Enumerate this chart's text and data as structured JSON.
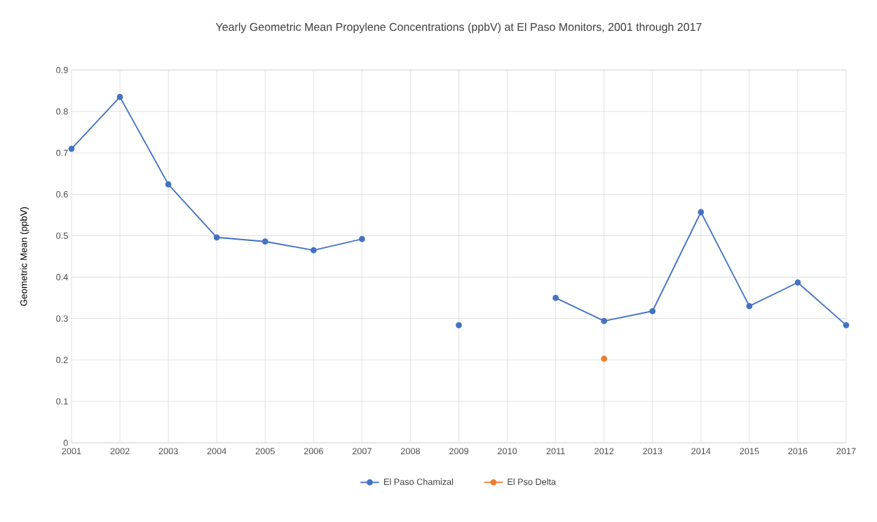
{
  "chart_data": {
    "type": "line",
    "title": "Yearly Geometric Mean Propylene Concentrations (ppbV) at El Paso Monitors, 2001 through 2017",
    "ylabel": "Geometric Mean (ppbV)",
    "x": [
      2001,
      2002,
      2003,
      2004,
      2005,
      2006,
      2007,
      2008,
      2009,
      2010,
      2011,
      2012,
      2013,
      2014,
      2015,
      2016,
      2017
    ],
    "series": [
      {
        "name": "El Paso Chamizal",
        "color": "#4472c4",
        "values": [
          0.71,
          0.835,
          0.624,
          0.496,
          0.486,
          0.465,
          0.492,
          null,
          0.284,
          null,
          0.35,
          0.294,
          0.318,
          0.557,
          0.33,
          0.387,
          0.284
        ]
      },
      {
        "name": "El Pso Delta",
        "color": "#ed7d31",
        "values": [
          null,
          null,
          null,
          null,
          null,
          null,
          null,
          null,
          null,
          null,
          null,
          0.203,
          null,
          null,
          null,
          null,
          null
        ]
      }
    ],
    "xlim": [
      2001,
      2017
    ],
    "xticks": [
      2001,
      2002,
      2003,
      2004,
      2005,
      2006,
      2007,
      2008,
      2009,
      2010,
      2011,
      2012,
      2013,
      2014,
      2015,
      2016,
      2017
    ],
    "ylim": [
      0,
      0.9
    ],
    "yticks": [
      0,
      0.1,
      0.2,
      0.3,
      0.4,
      0.5,
      0.6,
      0.7,
      0.8,
      0.9
    ],
    "grid": true,
    "legend": "bottom",
    "marker": "circle",
    "line_style": "solid"
  }
}
